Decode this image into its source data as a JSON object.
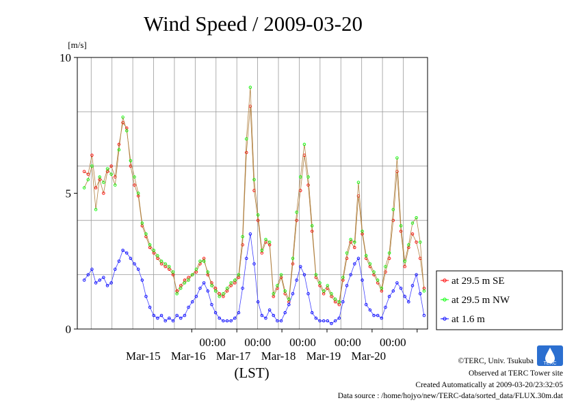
{
  "chart_data": {
    "type": "line",
    "title": "Wind Speed / 2009-03-20",
    "ylabel": "[m/s]",
    "xlabel": "(LST)",
    "ylim": [
      0,
      10
    ],
    "y_ticks": [
      "0",
      "5",
      "10"
    ],
    "y_tick_values": [
      0,
      5,
      10
    ],
    "x_range_hours": [
      -48,
      105
    ],
    "x_tick_time_label": "00:00",
    "x_day_ticks": [
      {
        "hour": 0,
        "time": "00:00",
        "date": "Mar-15"
      },
      {
        "hour": 24,
        "time": "00:00",
        "date": "Mar-16"
      },
      {
        "hour": 48,
        "time": "00:00",
        "date": "Mar-17"
      },
      {
        "hour": 72,
        "time": "00:00",
        "date": "Mar-18"
      },
      {
        "hour": 96,
        "time": "00:00",
        "date": "Mar-19"
      },
      {
        "hour": 120,
        "time": "00:00",
        "date": "Mar-20"
      }
    ],
    "grid": true,
    "legend_position": "right",
    "series": [
      {
        "name": "at 29.5 m SE",
        "color": "#ff0000",
        "x": [
          0,
          1,
          2,
          3,
          4,
          5,
          6,
          7,
          8,
          9,
          10,
          11,
          12,
          13,
          14,
          15,
          16,
          17,
          18,
          19,
          20,
          21,
          22,
          23,
          24,
          26,
          28,
          30,
          32,
          34,
          36,
          38,
          40,
          42,
          44,
          46,
          48,
          50,
          52,
          54,
          56,
          58,
          60,
          62,
          64,
          66,
          68,
          70,
          72,
          74,
          76,
          78,
          80,
          82,
          84,
          86,
          88,
          90,
          92,
          94,
          96,
          98,
          100,
          102,
          104,
          106,
          108,
          110,
          112,
          114,
          116,
          118,
          120,
          122,
          124,
          126,
          128,
          130,
          132,
          134,
          136,
          138,
          140,
          142,
          144,
          146,
          148,
          150,
          152
        ],
        "values": [
          5.8,
          5.7,
          6.4,
          5.2,
          5.5,
          5.0,
          5.8,
          6.0,
          5.6,
          6.8,
          7.6,
          7.4,
          6.0,
          5.3,
          4.9,
          3.8,
          3.4,
          3.0,
          2.8,
          2.6,
          2.4,
          2.3,
          2.2,
          2.0,
          1.4,
          1.6,
          1.8,
          1.9,
          2.0,
          2.1,
          2.4,
          2.6,
          2.0,
          1.7,
          1.5,
          1.3,
          1.2,
          1.4,
          1.6,
          1.7,
          1.9,
          3.1,
          6.5,
          8.2,
          5.1,
          4.0,
          2.8,
          3.2,
          3.1,
          1.2,
          1.5,
          1.9,
          1.3,
          1.0,
          2.4,
          4.0,
          5.1,
          6.4,
          5.3,
          3.6,
          1.9,
          1.6,
          1.3,
          1.5,
          1.2,
          1.0,
          0.9,
          1.8,
          2.6,
          3.2,
          3.0,
          4.9,
          3.5,
          2.6,
          2.3,
          2.0,
          1.7,
          1.4,
          2.1,
          2.6,
          4.0,
          5.8,
          3.6,
          2.3,
          3.0,
          3.5,
          3.2,
          2.6,
          1.5
        ],
        "note": "values approximate, read from gridlines"
      },
      {
        "name": "at 29.5 m NW",
        "color": "#00ff00",
        "x": [
          0,
          1,
          2,
          3,
          4,
          5,
          6,
          7,
          8,
          9,
          10,
          11,
          12,
          13,
          14,
          15,
          16,
          17,
          18,
          19,
          20,
          21,
          22,
          23,
          24,
          26,
          28,
          30,
          32,
          34,
          36,
          38,
          40,
          42,
          44,
          46,
          48,
          50,
          52,
          54,
          56,
          58,
          60,
          62,
          64,
          66,
          68,
          70,
          72,
          74,
          76,
          78,
          80,
          82,
          84,
          86,
          88,
          90,
          92,
          94,
          96,
          98,
          100,
          102,
          104,
          106,
          108,
          110,
          112,
          114,
          116,
          118,
          120,
          122,
          124,
          126,
          128,
          130,
          132,
          134,
          136,
          138,
          140,
          142,
          144,
          146,
          148,
          150,
          152
        ],
        "values": [
          5.2,
          5.5,
          6.0,
          4.4,
          5.6,
          5.4,
          5.9,
          5.7,
          5.3,
          6.6,
          7.8,
          7.3,
          6.2,
          5.6,
          5.0,
          3.9,
          3.5,
          3.1,
          2.9,
          2.7,
          2.5,
          2.4,
          2.3,
          2.1,
          1.3,
          1.5,
          1.7,
          1.8,
          2.0,
          2.2,
          2.5,
          2.5,
          2.1,
          1.6,
          1.4,
          1.2,
          1.3,
          1.5,
          1.7,
          1.8,
          2.0,
          3.4,
          7.0,
          8.9,
          5.5,
          4.2,
          2.9,
          3.3,
          3.2,
          1.3,
          1.6,
          2.0,
          1.4,
          1.1,
          2.6,
          4.3,
          5.6,
          6.8,
          5.6,
          3.8,
          2.0,
          1.7,
          1.4,
          1.6,
          1.3,
          1.1,
          1.0,
          1.9,
          2.8,
          3.3,
          3.2,
          5.4,
          3.6,
          2.7,
          2.4,
          2.1,
          1.8,
          1.5,
          2.3,
          2.8,
          4.4,
          6.3,
          3.8,
          2.5,
          3.1,
          3.9,
          4.1,
          3.2,
          1.4
        ]
      },
      {
        "name": "at 1.6 m",
        "color": "#0000ff",
        "x": [
          0,
          1,
          2,
          3,
          4,
          5,
          6,
          7,
          8,
          9,
          10,
          11,
          12,
          13,
          14,
          15,
          16,
          17,
          18,
          19,
          20,
          21,
          22,
          23,
          24,
          26,
          28,
          30,
          32,
          34,
          36,
          38,
          40,
          42,
          44,
          46,
          48,
          50,
          52,
          54,
          56,
          58,
          60,
          62,
          64,
          66,
          68,
          70,
          72,
          74,
          76,
          78,
          80,
          82,
          84,
          86,
          88,
          90,
          92,
          94,
          96,
          98,
          100,
          102,
          104,
          106,
          108,
          110,
          112,
          114,
          116,
          118,
          120,
          122,
          124,
          126,
          128,
          130,
          132,
          134,
          136,
          138,
          140,
          142,
          144,
          146,
          148,
          150,
          152
        ],
        "values": [
          1.8,
          2.0,
          2.2,
          1.7,
          1.8,
          1.9,
          1.6,
          1.7,
          2.2,
          2.5,
          2.9,
          2.8,
          2.6,
          2.4,
          2.2,
          1.8,
          1.2,
          0.8,
          0.5,
          0.4,
          0.5,
          0.3,
          0.4,
          0.3,
          0.5,
          0.4,
          0.5,
          0.8,
          1.0,
          1.2,
          1.5,
          1.7,
          1.4,
          0.9,
          0.6,
          0.4,
          0.3,
          0.3,
          0.3,
          0.4,
          0.6,
          1.5,
          2.6,
          3.5,
          2.4,
          1.0,
          0.5,
          0.4,
          0.7,
          0.5,
          0.3,
          0.3,
          0.6,
          0.9,
          1.3,
          1.8,
          2.3,
          2.0,
          1.3,
          0.6,
          0.4,
          0.3,
          0.3,
          0.3,
          0.2,
          0.3,
          0.4,
          1.0,
          1.6,
          2.0,
          2.4,
          2.6,
          1.8,
          0.9,
          0.7,
          0.5,
          0.5,
          0.4,
          0.8,
          1.2,
          1.4,
          1.7,
          1.5,
          1.2,
          1.0,
          1.6,
          2.0,
          1.3,
          0.5
        ]
      }
    ]
  },
  "credits": {
    "copyright": "©TERC, Univ. Tsukuba",
    "observed": "Observed at TERC Tower site",
    "created": "Created Automatically at 2009-03-20/23:32:05",
    "source": "Data source : /home/hojyo/new/TERC-data/sorted_data/FLUX.30m.dat",
    "logo_text": "TERC"
  }
}
